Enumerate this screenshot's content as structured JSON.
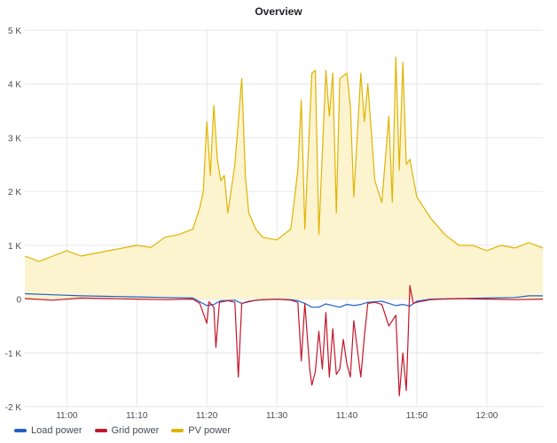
{
  "panel": {
    "title": "Overview"
  },
  "colors": {
    "load": "#1f60c4",
    "grid": "#c4162a",
    "pv": "#e0b400",
    "pv_fill": "#fcf3cf",
    "gridline": "#e6e6e6"
  },
  "chart_data": {
    "type": "line",
    "title": "Overview",
    "xlabel": "",
    "ylabel": "",
    "x_range": [
      "10:54",
      "12:08"
    ],
    "ylim": [
      -2000,
      5000
    ],
    "x_ticks": [
      "11:00",
      "11:10",
      "11:20",
      "11:30",
      "11:40",
      "11:50",
      "12:00"
    ],
    "y_ticks": [
      {
        "value": 5000,
        "label": "5 K"
      },
      {
        "value": 4000,
        "label": "4 K"
      },
      {
        "value": 3000,
        "label": "3 K"
      },
      {
        "value": 2000,
        "label": "2 K"
      },
      {
        "value": 1000,
        "label": "1 K"
      },
      {
        "value": 0,
        "label": "0"
      },
      {
        "value": -1000,
        "label": "-1 K"
      },
      {
        "value": -2000,
        "label": "-2 K"
      }
    ],
    "grid": true,
    "legend_position": "bottom-left",
    "series": [
      {
        "name": "Load power",
        "color": "#1f60c4",
        "points": [
          [
            "10:54",
            100
          ],
          [
            "10:58",
            80
          ],
          [
            "11:02",
            60
          ],
          [
            "11:06",
            50
          ],
          [
            "11:10",
            40
          ],
          [
            "11:14",
            30
          ],
          [
            "11:18",
            20
          ],
          [
            "11:19",
            -50
          ],
          [
            "11:20",
            -120
          ],
          [
            "11:21",
            -100
          ],
          [
            "11:22",
            -30
          ],
          [
            "11:24",
            -20
          ],
          [
            "11:25",
            -80
          ],
          [
            "11:26",
            -40
          ],
          [
            "11:28",
            -10
          ],
          [
            "11:30",
            0
          ],
          [
            "11:32",
            -10
          ],
          [
            "11:33",
            -30
          ],
          [
            "11:34",
            -80
          ],
          [
            "11:35",
            -150
          ],
          [
            "11:36",
            -150
          ],
          [
            "11:37",
            -90
          ],
          [
            "11:38",
            -120
          ],
          [
            "11:39",
            -150
          ],
          [
            "11:40",
            -100
          ],
          [
            "11:41",
            -120
          ],
          [
            "11:42",
            -100
          ],
          [
            "11:43",
            -60
          ],
          [
            "11:45",
            -40
          ],
          [
            "11:46",
            -80
          ],
          [
            "11:47",
            -120
          ],
          [
            "11:48",
            -100
          ],
          [
            "11:49",
            -130
          ],
          [
            "11:50",
            -40
          ],
          [
            "11:52",
            0
          ],
          [
            "11:56",
            10
          ],
          [
            "12:00",
            20
          ],
          [
            "12:04",
            30
          ],
          [
            "12:06",
            60
          ],
          [
            "12:08",
            60
          ]
        ]
      },
      {
        "name": "Grid power",
        "color": "#c4162a",
        "points": [
          [
            "10:54",
            10
          ],
          [
            "10:58",
            -20
          ],
          [
            "11:02",
            20
          ],
          [
            "11:06",
            10
          ],
          [
            "11:10",
            0
          ],
          [
            "11:14",
            -10
          ],
          [
            "11:18",
            0
          ],
          [
            "11:19",
            -80
          ],
          [
            "11:20",
            -450
          ],
          [
            "11:20.3",
            -50
          ],
          [
            "11:21",
            -150
          ],
          [
            "11:21.3",
            -900
          ],
          [
            "11:21.8",
            -60
          ],
          [
            "11:23",
            -30
          ],
          [
            "11:24",
            -60
          ],
          [
            "11:24.5",
            -1450
          ],
          [
            "11:25",
            -80
          ],
          [
            "11:27",
            -20
          ],
          [
            "11:30",
            0
          ],
          [
            "11:32",
            -20
          ],
          [
            "11:33",
            -60
          ],
          [
            "11:33.5",
            -1150
          ],
          [
            "11:34",
            -80
          ],
          [
            "11:34.7",
            -1300
          ],
          [
            "11:35",
            -1600
          ],
          [
            "11:35.5",
            -1350
          ],
          [
            "11:36",
            -600
          ],
          [
            "11:36.5",
            -1300
          ],
          [
            "11:37",
            -250
          ],
          [
            "11:37.5",
            -1450
          ],
          [
            "11:38",
            -550
          ],
          [
            "11:38.5",
            -1400
          ],
          [
            "11:39",
            -1300
          ],
          [
            "11:39.5",
            -750
          ],
          [
            "11:40",
            -1200
          ],
          [
            "11:40.5",
            -1450
          ],
          [
            "11:41",
            -400
          ],
          [
            "11:42",
            -1450
          ],
          [
            "11:42.5",
            -700
          ],
          [
            "11:43",
            -80
          ],
          [
            "11:44",
            -60
          ],
          [
            "11:45",
            -100
          ],
          [
            "11:46",
            -500
          ],
          [
            "11:47",
            -300
          ],
          [
            "11:47.5",
            -1800
          ],
          [
            "11:48",
            -1000
          ],
          [
            "11:48.5",
            -1700
          ],
          [
            "11:49",
            250
          ],
          [
            "11:49.5",
            -80
          ],
          [
            "11:50",
            -60
          ],
          [
            "11:52",
            -10
          ],
          [
            "11:56",
            10
          ],
          [
            "12:00",
            0
          ],
          [
            "12:04",
            -10
          ],
          [
            "12:08",
            0
          ]
        ]
      },
      {
        "name": "PV power",
        "color": "#e0b400",
        "area": true,
        "points": [
          [
            "10:54",
            800
          ],
          [
            "10:56",
            700
          ],
          [
            "10:58",
            800
          ],
          [
            "11:00",
            900
          ],
          [
            "11:02",
            800
          ],
          [
            "11:04",
            850
          ],
          [
            "11:06",
            900
          ],
          [
            "11:08",
            950
          ],
          [
            "11:10",
            1000
          ],
          [
            "11:12",
            960
          ],
          [
            "11:14",
            1150
          ],
          [
            "11:16",
            1200
          ],
          [
            "11:18",
            1300
          ],
          [
            "11:19",
            1700
          ],
          [
            "11:19.5",
            2000
          ],
          [
            "11:20",
            3300
          ],
          [
            "11:20.5",
            2300
          ],
          [
            "11:21",
            3600
          ],
          [
            "11:21.5",
            2600
          ],
          [
            "11:22",
            2200
          ],
          [
            "11:22.5",
            2300
          ],
          [
            "11:23",
            1600
          ],
          [
            "11:24",
            2500
          ],
          [
            "11:25",
            4100
          ],
          [
            "11:25.5",
            2300
          ],
          [
            "11:26",
            1600
          ],
          [
            "11:27",
            1300
          ],
          [
            "11:28",
            1150
          ],
          [
            "11:30",
            1100
          ],
          [
            "11:32",
            1300
          ],
          [
            "11:33",
            2400
          ],
          [
            "11:33.5",
            3700
          ],
          [
            "11:34",
            1300
          ],
          [
            "11:35",
            4200
          ],
          [
            "11:35.5",
            4250
          ],
          [
            "11:36",
            1200
          ],
          [
            "11:37",
            4250
          ],
          [
            "11:37.5",
            3400
          ],
          [
            "11:38",
            4200
          ],
          [
            "11:38.5",
            1600
          ],
          [
            "11:39",
            4100
          ],
          [
            "11:39.5",
            4150
          ],
          [
            "11:40",
            4200
          ],
          [
            "11:40.5",
            3600
          ],
          [
            "11:41",
            1900
          ],
          [
            "11:42",
            4200
          ],
          [
            "11:42.5",
            3300
          ],
          [
            "11:43",
            4000
          ],
          [
            "11:44",
            2200
          ],
          [
            "11:45",
            1800
          ],
          [
            "11:46",
            3400
          ],
          [
            "11:46.5",
            1800
          ],
          [
            "11:47",
            4500
          ],
          [
            "11:47.5",
            2400
          ],
          [
            "11:48",
            4400
          ],
          [
            "11:48.5",
            2500
          ],
          [
            "11:49",
            2600
          ],
          [
            "11:50",
            1900
          ],
          [
            "11:52",
            1500
          ],
          [
            "11:54",
            1200
          ],
          [
            "11:56",
            1000
          ],
          [
            "11:58",
            1000
          ],
          [
            "12:00",
            900
          ],
          [
            "12:02",
            1000
          ],
          [
            "12:04",
            950
          ],
          [
            "12:06",
            1050
          ],
          [
            "12:08",
            950
          ]
        ]
      }
    ]
  }
}
